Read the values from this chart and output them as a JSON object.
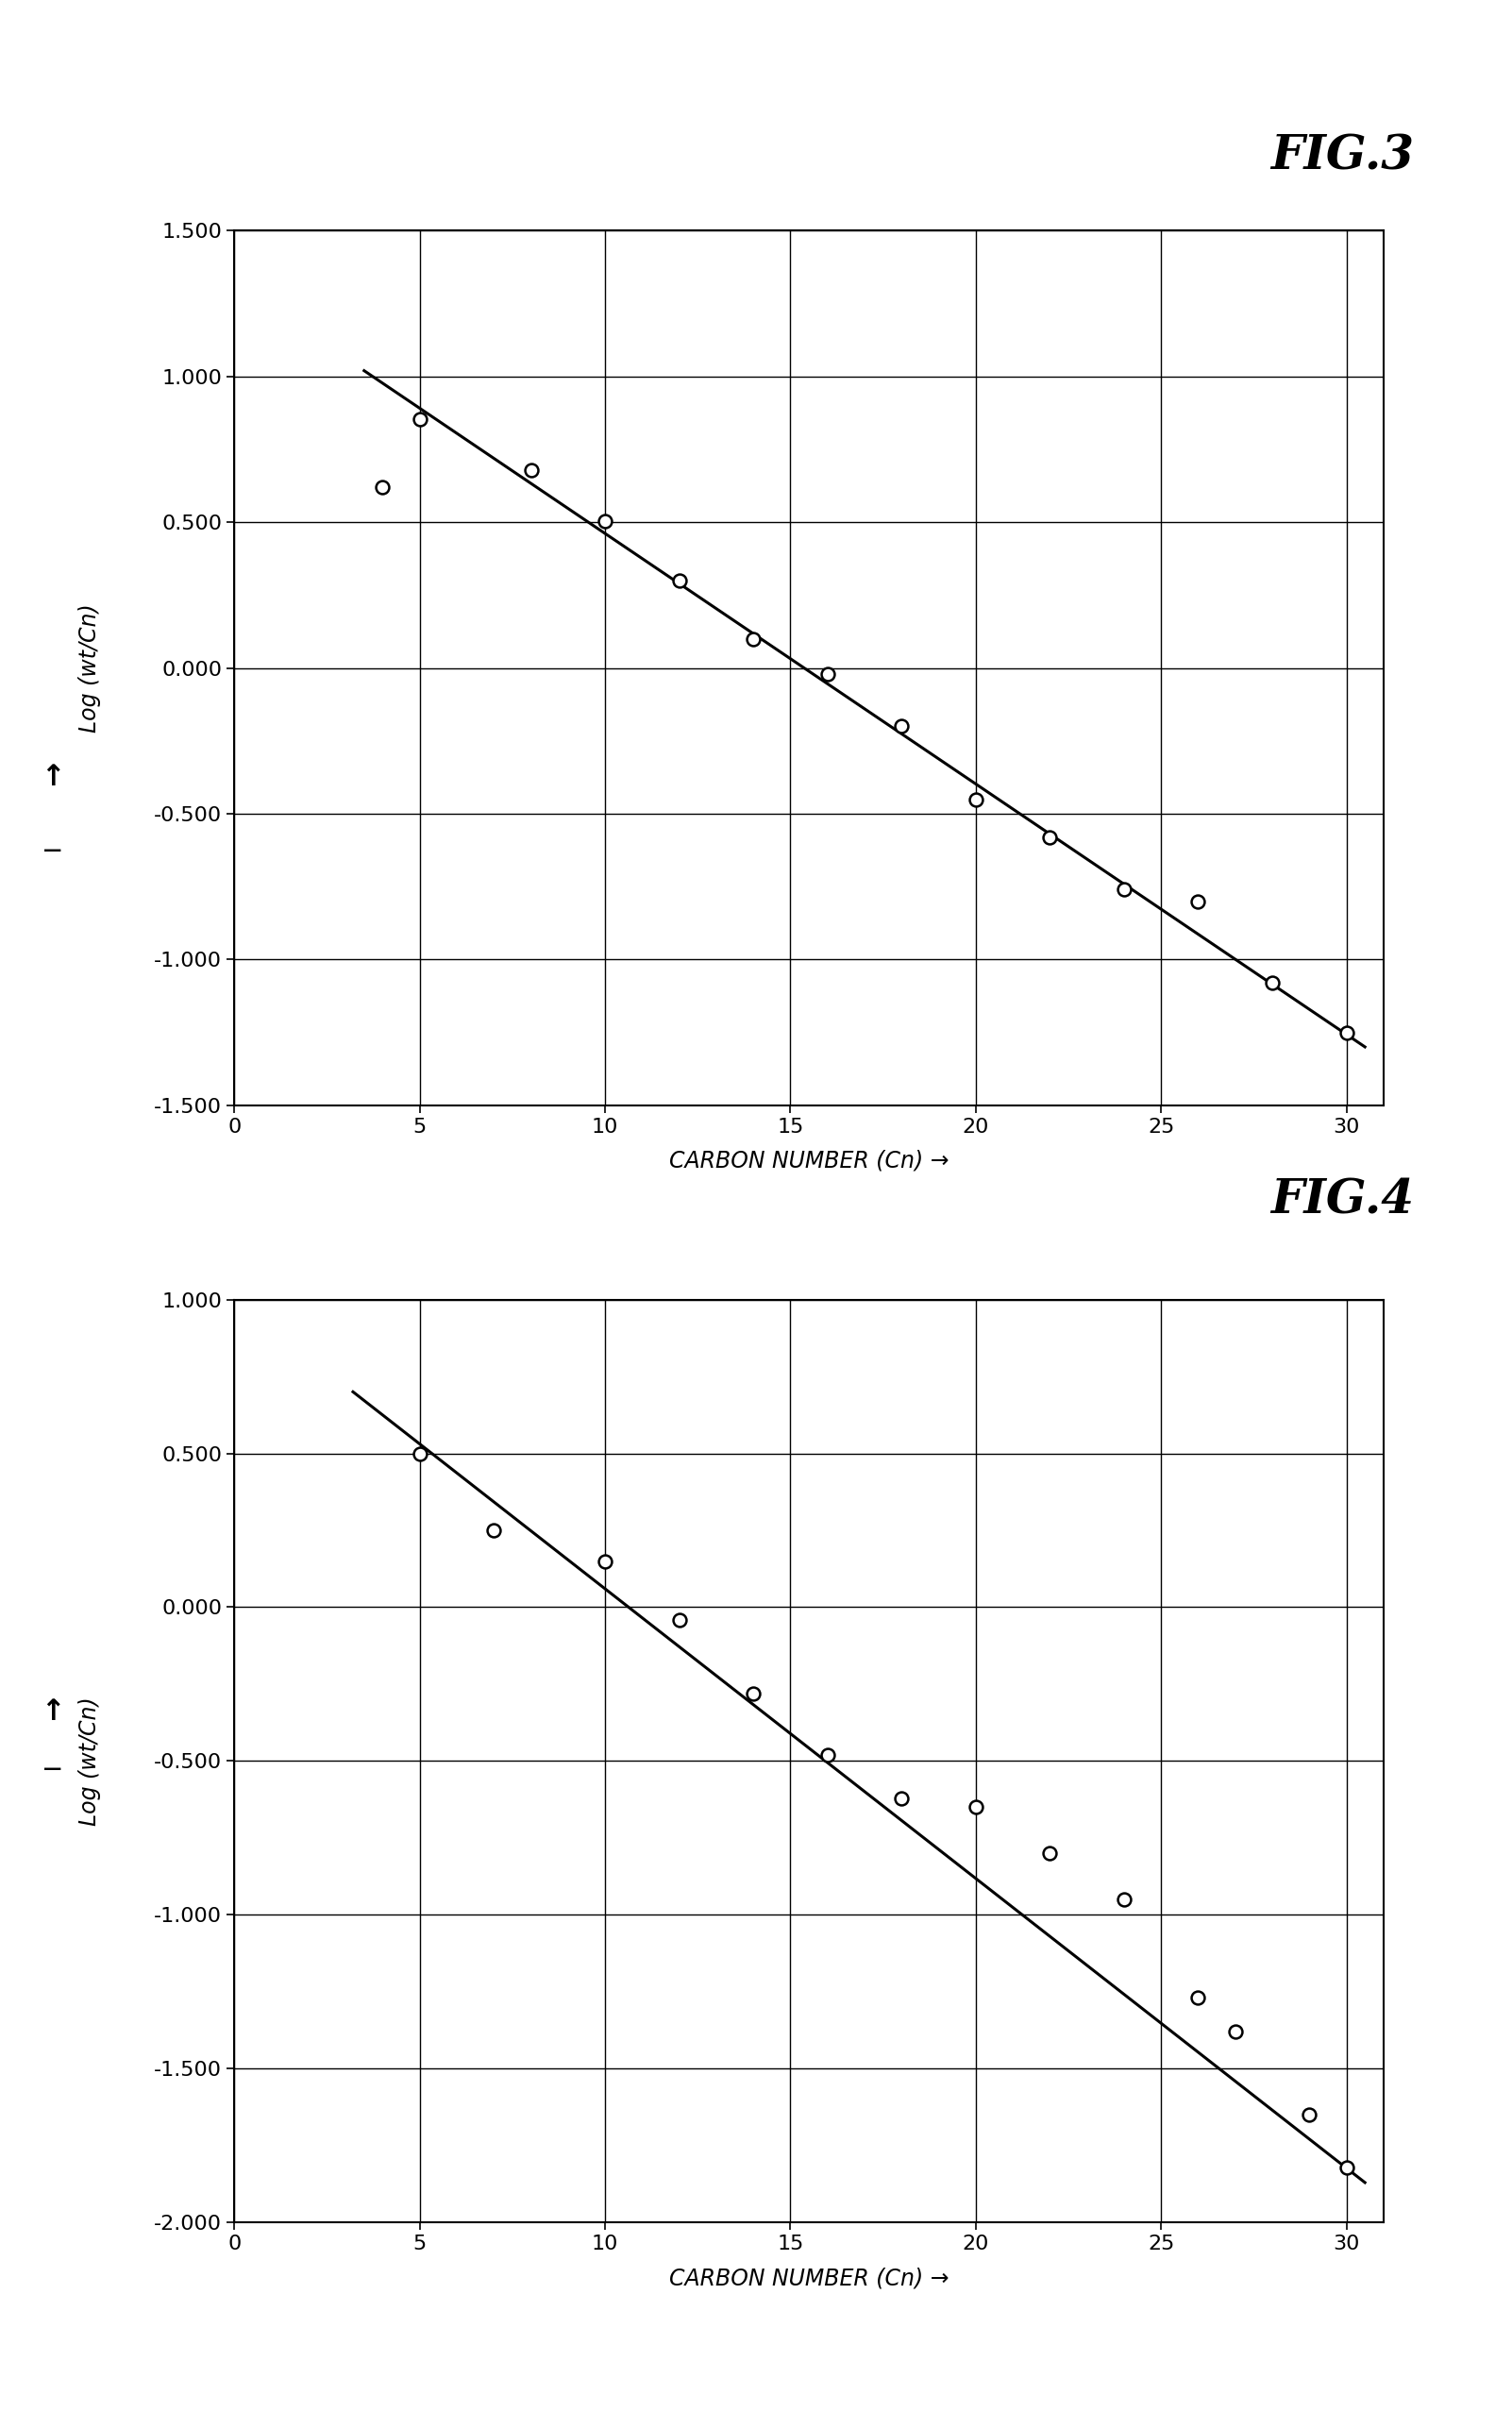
{
  "fig3": {
    "title": "FIG.3",
    "scatter_x": [
      4,
      5,
      8,
      10,
      12,
      14,
      16,
      18,
      20,
      22,
      24,
      26,
      28,
      30
    ],
    "scatter_y": [
      0.62,
      0.855,
      0.68,
      0.505,
      0.3,
      0.1,
      -0.02,
      -0.2,
      -0.45,
      -0.58,
      -0.76,
      -0.8,
      -1.08,
      -1.25
    ],
    "line_x": [
      3.5,
      30.5
    ],
    "line_y": [
      1.02,
      -1.3
    ],
    "xlim": [
      0,
      31
    ],
    "ylim": [
      -1.5,
      1.5
    ],
    "xticks": [
      0,
      5,
      10,
      15,
      20,
      25,
      30
    ],
    "yticks": [
      -1.5,
      -1.0,
      -0.5,
      0.0,
      0.5,
      1.0,
      1.5
    ],
    "xlabel": "CARBON NUMBER (Cn) →",
    "ylabel": "Log (wt/Cn)"
  },
  "fig4": {
    "title": "FIG.4",
    "scatter_x": [
      5,
      7,
      10,
      12,
      14,
      16,
      18,
      20,
      22,
      24,
      26,
      27,
      29,
      30
    ],
    "scatter_y": [
      0.5,
      0.25,
      0.15,
      -0.04,
      -0.28,
      -0.48,
      -0.62,
      -0.65,
      -0.8,
      -0.95,
      -1.27,
      -1.38,
      -1.65,
      -1.82
    ],
    "line_x": [
      3.2,
      30.5
    ],
    "line_y": [
      0.7,
      -1.87
    ],
    "xlim": [
      0,
      31
    ],
    "ylim": [
      -2.0,
      1.0
    ],
    "xticks": [
      0,
      5,
      10,
      15,
      20,
      25,
      30
    ],
    "yticks": [
      -2.0,
      -1.5,
      -1.0,
      -0.5,
      0.0,
      0.5,
      1.0
    ],
    "xlabel": "CARBON NUMBER (Cn) →",
    "ylabel": "Log (wt/Cn)"
  },
  "background_color": "#ffffff",
  "line_color": "#000000",
  "scatter_color": "#000000",
  "grid_color": "#000000",
  "axis_label_fontsize": 17,
  "tick_fontsize": 16,
  "title_fontsize": 36
}
